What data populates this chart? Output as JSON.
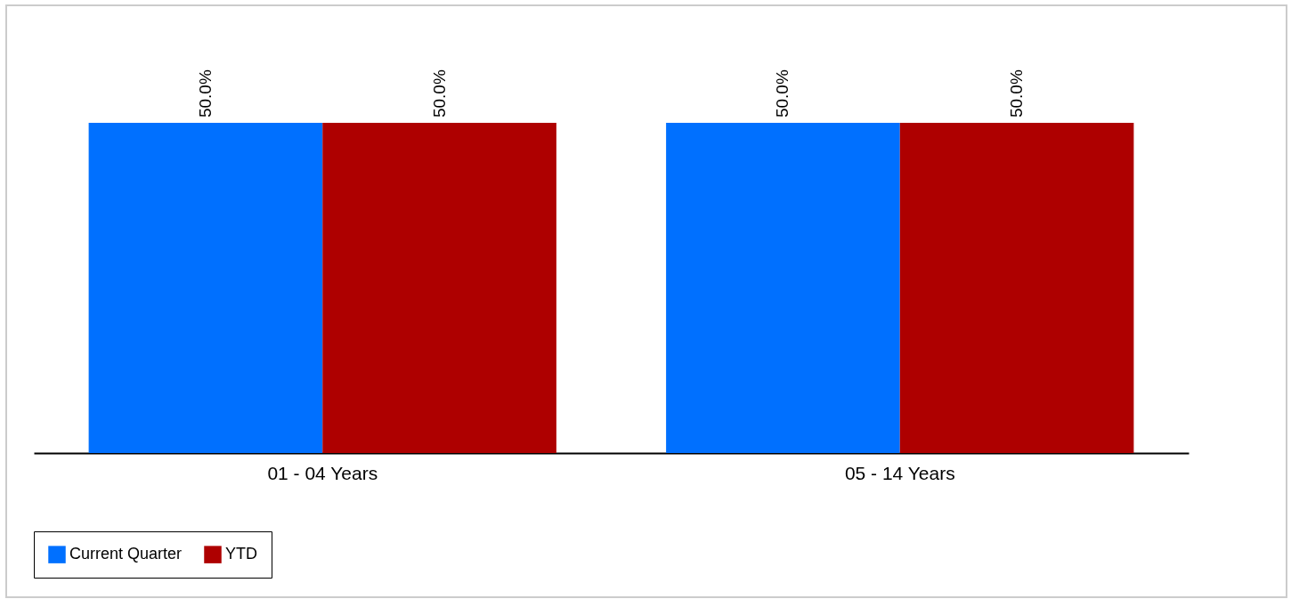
{
  "chart_data": {
    "type": "bar",
    "categories": [
      "01 - 04 Years",
      "05 - 14 Years"
    ],
    "legend": "bottom",
    "series": [
      {
        "name": "Current Quarter",
        "color": "#0070ff",
        "values": [
          50,
          50
        ],
        "value_labels": [
          "50.0%",
          "50.0%"
        ]
      },
      {
        "name": "YTD",
        "color": "#ae0000",
        "values": [
          50,
          50
        ],
        "value_labels": [
          "50.0%",
          "50.0%"
        ]
      }
    ]
  }
}
